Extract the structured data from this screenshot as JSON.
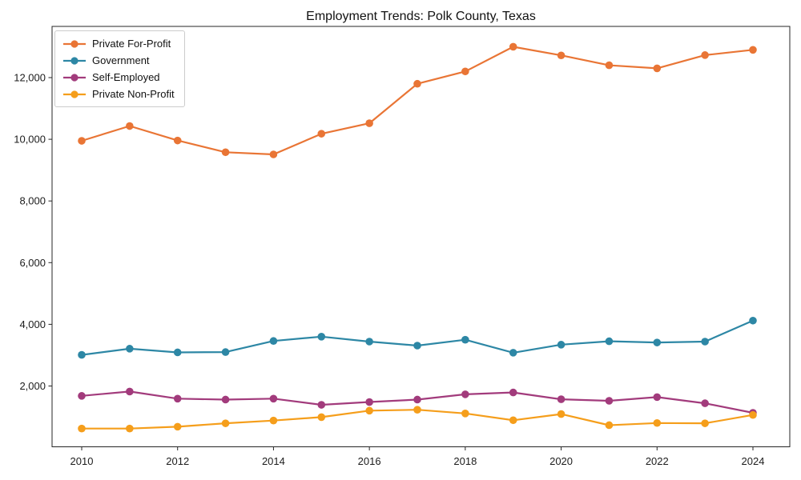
{
  "chart_data": {
    "type": "line",
    "title": "Employment Trends: Polk County, Texas",
    "xlabel": "",
    "ylabel": "",
    "grid": false,
    "legend_position": "upper left",
    "x": [
      2010,
      2011,
      2012,
      2013,
      2014,
      2015,
      2016,
      2017,
      2018,
      2019,
      2020,
      2021,
      2022,
      2023,
      2024
    ],
    "xticks": [
      2010,
      2012,
      2014,
      2016,
      2018,
      2020,
      2022,
      2024
    ],
    "yticks": [
      2000,
      4000,
      6000,
      8000,
      10000,
      12000
    ],
    "ytick_labels": [
      "2,000",
      "4,000",
      "6,000",
      "8,000",
      "10,000",
      "12,000"
    ],
    "xlim": [
      2009.38,
      2024.76
    ],
    "ylim": [
      0,
      13660
    ],
    "series": [
      {
        "name": "Private For-Profit",
        "color": "#e97535",
        "values": [
          9950,
          10430,
          9960,
          9580,
          9510,
          10180,
          10520,
          11800,
          12200,
          13000,
          12720,
          12400,
          12300,
          12730,
          12900
        ]
      },
      {
        "name": "Government",
        "color": "#2d87a5",
        "values": [
          3010,
          3210,
          3090,
          3100,
          3460,
          3600,
          3440,
          3310,
          3500,
          3080,
          3340,
          3450,
          3410,
          3440,
          4120
        ]
      },
      {
        "name": "Self-Employed",
        "color": "#a23b7c",
        "values": [
          1680,
          1820,
          1590,
          1560,
          1590,
          1390,
          1480,
          1560,
          1730,
          1790,
          1570,
          1520,
          1640,
          1440,
          1130
        ]
      },
      {
        "name": "Private Non-Profit",
        "color": "#f59e1b",
        "values": [
          620,
          620,
          680,
          790,
          880,
          990,
          1200,
          1230,
          1110,
          890,
          1090,
          730,
          800,
          790,
          1060
        ]
      }
    ]
  }
}
